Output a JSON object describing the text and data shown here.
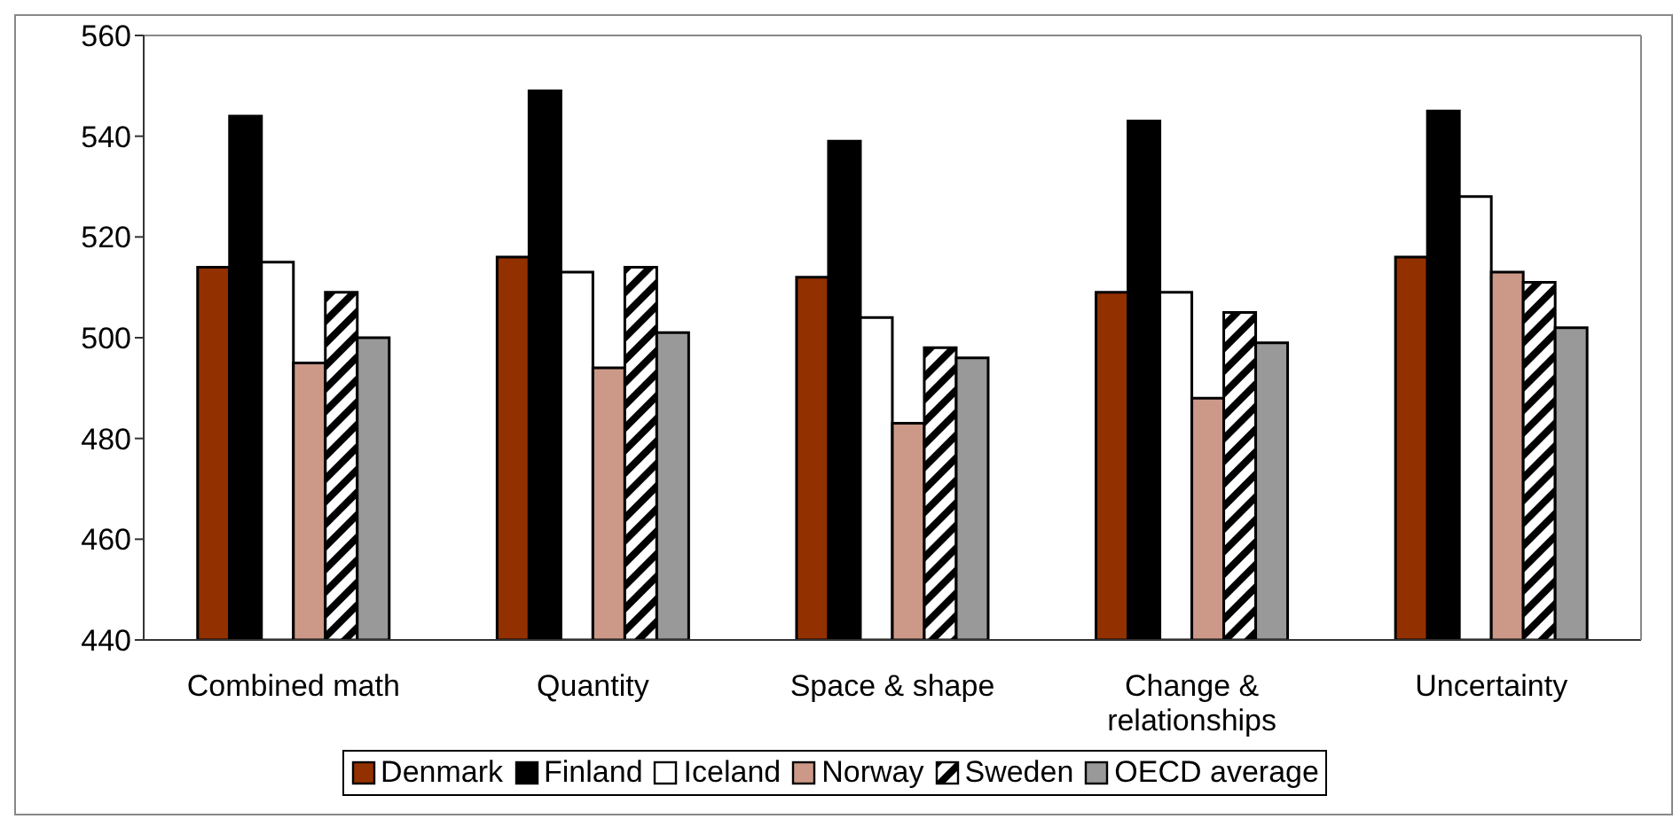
{
  "chart_data": {
    "type": "bar",
    "categories": [
      "Combined math",
      "Quantity",
      "Space & shape",
      "Change & relationships",
      "Uncertainty"
    ],
    "series": [
      {
        "name": "Denmark",
        "color": "#933000",
        "values": [
          514,
          516,
          512,
          509,
          516
        ]
      },
      {
        "name": "Finland",
        "color": "#000000",
        "values": [
          544,
          549,
          539,
          543,
          545
        ]
      },
      {
        "name": "Iceland",
        "color": "#ffffff",
        "values": [
          515,
          513,
          504,
          509,
          528
        ]
      },
      {
        "name": "Norway",
        "color": "#cc9988",
        "values": [
          495,
          494,
          483,
          488,
          513
        ]
      },
      {
        "name": "Sweden",
        "color": "#000000",
        "values": [
          509,
          514,
          498,
          505,
          511
        ]
      },
      {
        "name": "OECD average",
        "color": "#999999",
        "values": [
          500,
          501,
          496,
          499,
          502
        ]
      }
    ],
    "ylim": [
      440,
      560
    ],
    "yticks": [
      440,
      460,
      480,
      500,
      520,
      540,
      560
    ],
    "grid": false,
    "legend": "bottom"
  }
}
